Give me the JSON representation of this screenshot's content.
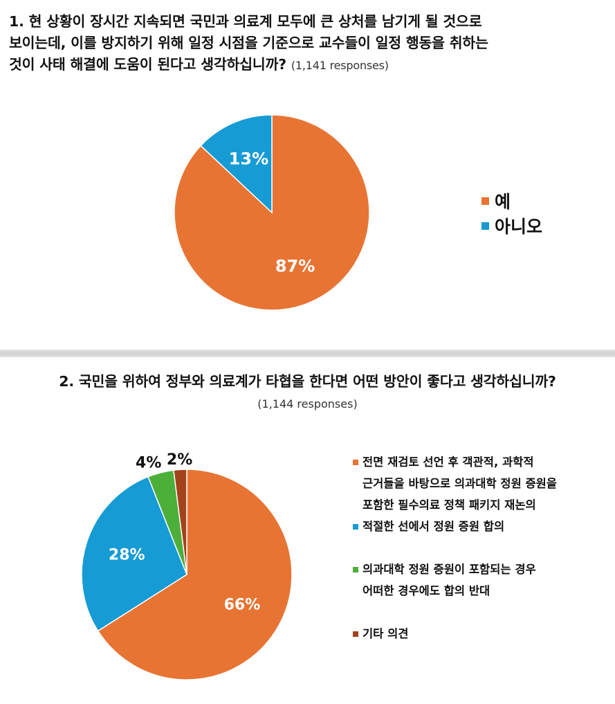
{
  "q1": {
    "title": "1. 현 상황이 장시간 지속되면 국민과 의료계 모두에 큰 상처를 남기게 될 것으로\n보이는데, 이를 방지하기 위해 일정 시점을 기준으로 교수들이 일정 행동을 취하는\n것이 사태 해결에 도움이 된다고 생각하십니까?",
    "responses": "(1,141 responses)"
  },
  "q2": {
    "title": "2. 국민을 위하여 정부와 의료계가 타협을 한다면 어떤 방안이 좋다고 생각하십니까?",
    "responses": "(1,144 responses)"
  },
  "chart_data": [
    {
      "type": "pie",
      "categories": [
        "예",
        "아니오"
      ],
      "values": [
        87,
        13
      ],
      "labels": [
        "87%",
        "13%"
      ],
      "colors": [
        "#E87433",
        "#169BD5"
      ],
      "legend_position": "right"
    },
    {
      "type": "pie",
      "categories": [
        "전면 재검토 선언 후 객관적, 과학적\n근거들을 바탕으로 의과대학 정원 증원을\n포함한 필수의료 정책 패키지 재논의",
        "적절한 선에서 정원 증원 합의",
        "의과대학 정원 증원이 포함되는 경우\n어떠한 경우에도 합의 반대",
        "기타 의견"
      ],
      "values": [
        66,
        28,
        4,
        2
      ],
      "labels": [
        "66%",
        "28%",
        "4%",
        "2%"
      ],
      "colors": [
        "#E87433",
        "#169BD5",
        "#4CAF3A",
        "#A2431C"
      ],
      "legend_position": "right"
    }
  ]
}
